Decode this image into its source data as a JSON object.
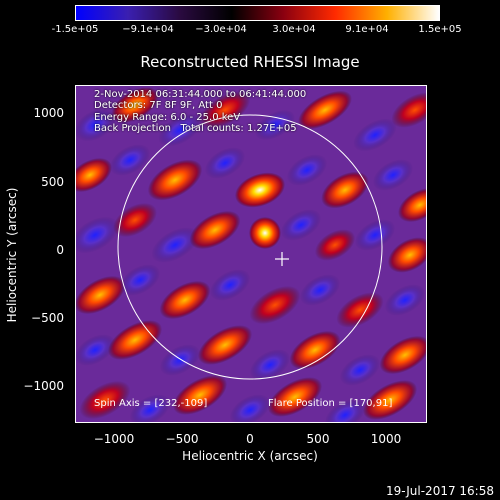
{
  "colorbar": {
    "ticks": [
      "-1.5e+05",
      "−9.1e+04",
      "−3.0e+04",
      "3.0e+04",
      "9.1e+04",
      "1.5e+05"
    ],
    "colors": [
      "#0000ff",
      "#3a1fb0",
      "#2a0a40",
      "#000000",
      "#8a0010",
      "#ff2a00",
      "#ffb000",
      "#ffffff"
    ]
  },
  "plot": {
    "title": "Reconstructed RHESSI Image",
    "info_lines": [
      "2-Nov-2014 06:31:44.000 to 06:41:44.000",
      "Detectors: 7F 8F 9F, Att 0",
      "Energy Range: 6.0 - 25.0 keV",
      "Back Projection   Total counts: 1.27E+05"
    ],
    "spin_axis": "Spin Axis = [232,-109]",
    "flare_position": "Flare Position = [170,91]",
    "xlabel": "Heliocentric X (arcsec)",
    "ylabel": "Heliocentric Y (arcsec)",
    "xticks": [
      "−1000",
      "−500",
      "0",
      "500",
      "1000"
    ],
    "yticks": [
      "1000",
      "500",
      "0",
      "−500",
      "−1000"
    ]
  },
  "timestamp": "19-Jul-2017 16:58"
}
